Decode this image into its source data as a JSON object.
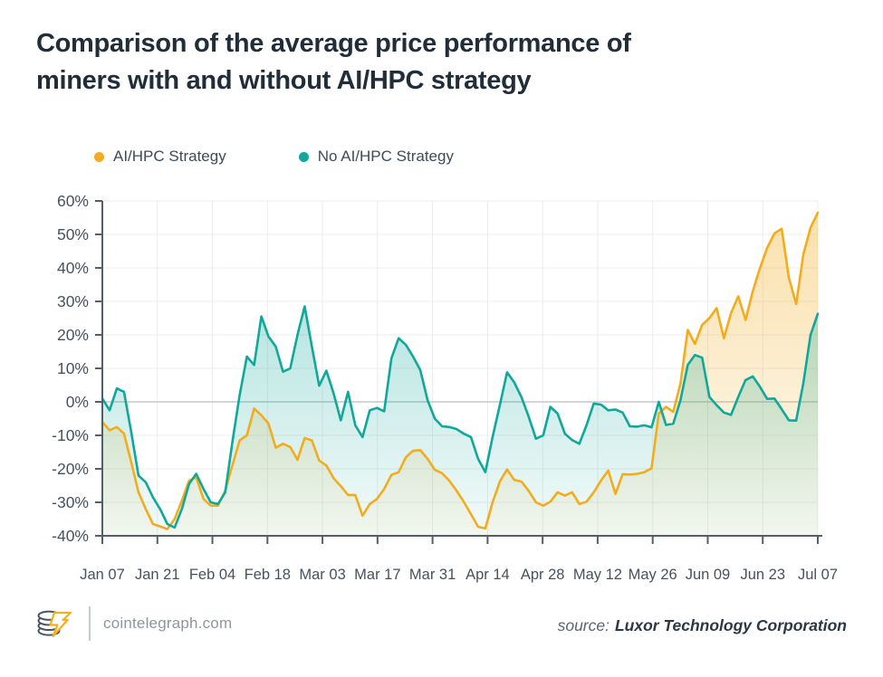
{
  "header": {
    "title_lines": [
      "Comparison of the average price performance of",
      "miners with and without AI/HPC strategy"
    ]
  },
  "legend": {
    "items": [
      {
        "label": "AI/HPC Strategy",
        "color": "#F2AC1D"
      },
      {
        "label": "No AI/HPC Strategy",
        "color": "#0FA89B"
      }
    ]
  },
  "chart_data": {
    "type": "area",
    "title": "Comparison of the average price performance of miners with and without AI/HPC strategy",
    "xlabel": "",
    "ylabel": "",
    "y_format": "percent",
    "ylim": [
      -40,
      60
    ],
    "grid": true,
    "legend_position": "top-left",
    "x_tick_labels": [
      "Jan 07",
      "Jan 21",
      "Feb 04",
      "Feb 18",
      "Mar 03",
      "Mar 17",
      "Mar 31",
      "Apr 14",
      "Apr 28",
      "May 12",
      "May 26",
      "Jun 09",
      "Jun 23",
      "Jul 07"
    ],
    "y_tick_labels": [
      "60%",
      "50%",
      "40%",
      "30%",
      "20%",
      "10%",
      "0%",
      "-10%",
      "-20%",
      "-30%",
      "-40%"
    ],
    "series": [
      {
        "name": "AI/HPC Strategy",
        "color": "#F2AC1D",
        "fill_opacity_top": 0.38,
        "values": [
          -6,
          -8.5,
          -7.5,
          -9.5,
          -18,
          -27,
          -32,
          -36.5,
          -37.2,
          -38,
          -35,
          -29.5,
          -23.5,
          -22.5,
          -29,
          -31,
          -31,
          -26.5,
          -19,
          -11.5,
          -10,
          -2,
          -4,
          -6.5,
          -13.7,
          -12.5,
          -13.5,
          -17.3,
          -10.8,
          -11.5,
          -17.5,
          -19,
          -22.8,
          -25.2,
          -27.8,
          -27.8,
          -34,
          -30.5,
          -29,
          -26,
          -21.8,
          -21,
          -16.5,
          -14.6,
          -14.4,
          -17,
          -20.3,
          -21.3,
          -23.5,
          -26.5,
          -29.8,
          -33.5,
          -37.3,
          -37.8,
          -30,
          -23.8,
          -20.2,
          -23.3,
          -23.8,
          -26.6,
          -30,
          -31,
          -29.8,
          -27,
          -28,
          -27,
          -30.5,
          -29.8,
          -27,
          -23.5,
          -20.5,
          -27.5,
          -21.6,
          -21.7,
          -21.5,
          -21,
          -19.8,
          -3.5,
          -1.5,
          -3,
          5.5,
          21.5,
          17.3,
          23,
          25,
          28,
          19,
          26.5,
          31.5,
          24.5,
          33,
          40,
          46,
          50.3,
          51.7,
          37,
          29.2,
          44,
          52,
          56.5
        ]
      },
      {
        "name": "No AI/HPC Strategy",
        "color": "#0FA89B",
        "fill_opacity_top": 0.42,
        "values": [
          1,
          -2.5,
          4,
          3,
          -9,
          -22,
          -24,
          -28.5,
          -32,
          -36.5,
          -37.5,
          -32,
          -24.5,
          -21.5,
          -26,
          -30,
          -30.5,
          -27,
          -12,
          2,
          13.5,
          11,
          25.5,
          19.5,
          16.5,
          9,
          10,
          20,
          28.5,
          16.5,
          4.8,
          9.3,
          2.5,
          -5.5,
          3,
          -7,
          -10.5,
          -2.5,
          -1.8,
          -2.8,
          13,
          19,
          17,
          13.5,
          9.5,
          0.5,
          -5,
          -7.3,
          -7.5,
          -8.1,
          -9.5,
          -10.5,
          -17,
          -21,
          -10.5,
          -1,
          8.8,
          5.8,
          1.4,
          -4.5,
          -11,
          -10,
          -1.5,
          -3.5,
          -9.5,
          -11.4,
          -12.5,
          -7,
          -0.5,
          -0.8,
          -2.5,
          -2.3,
          -3.2,
          -7.3,
          -7.4,
          -7,
          -7.6,
          0,
          -6.9,
          -6.5,
          0.5,
          11,
          14,
          13.2,
          1.5,
          -1,
          -3.2,
          -3.9,
          1.5,
          6.5,
          7.6,
          4.5,
          0.9,
          1,
          -2.2,
          -5.5,
          -5.6,
          5.5,
          20,
          26.3
        ]
      }
    ]
  },
  "footer": {
    "brand": "cointelegraph.com",
    "logo_icon": "coin-stack-lightning-icon",
    "source_label": "source:",
    "source_name": "Luxor Technology Corporation"
  },
  "style": {
    "axis_color": "#535e69",
    "grid_color": "#ececed",
    "zero_line_color": "#b6bcc2",
    "title_color": "#212e3a",
    "tick_label_color": "#46525e"
  }
}
